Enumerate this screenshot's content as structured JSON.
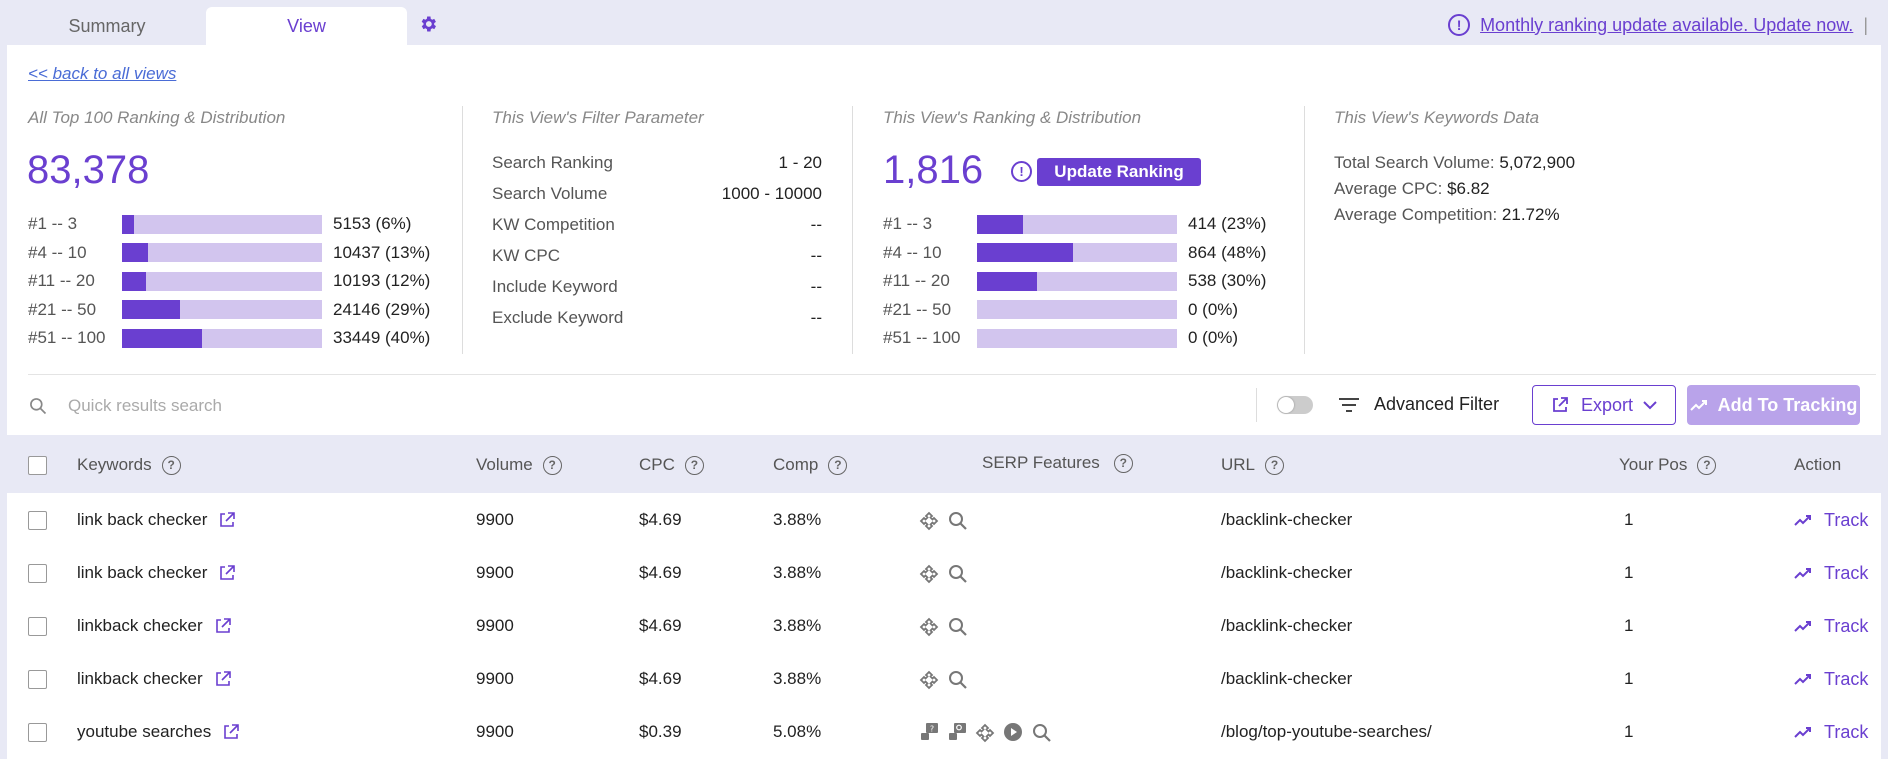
{
  "tabs": [
    {
      "label": "Summary"
    },
    {
      "label": "View"
    }
  ],
  "notice": {
    "text": "Monthly ranking update available. Update now.",
    "separator": "|"
  },
  "back_link": "<< back to all views",
  "all_top": {
    "title": "All Top 100 Ranking & Distribution",
    "total": "83,378",
    "rows": [
      {
        "label": "#1 -- 3",
        "value": "5153 (6%)",
        "fraction": 0.06
      },
      {
        "label": "#4 -- 10",
        "value": "10437 (13%)",
        "fraction": 0.13
      },
      {
        "label": "#11 -- 20",
        "value": "10193 (12%)",
        "fraction": 0.12
      },
      {
        "label": "#21 -- 50",
        "value": "24146 (29%)",
        "fraction": 0.29
      },
      {
        "label": "#51 -- 100",
        "value": "33449 (40%)",
        "fraction": 0.4
      }
    ]
  },
  "filter": {
    "title": "This View's Filter Parameter",
    "rows": [
      {
        "key": "Search Ranking",
        "value": "1 - 20"
      },
      {
        "key": "Search Volume",
        "value": "1000 - 10000"
      },
      {
        "key": "KW Competition",
        "value": "--"
      },
      {
        "key": "KW CPC",
        "value": "--"
      },
      {
        "key": "Include Keyword",
        "value": "--"
      },
      {
        "key": "Exclude Keyword",
        "value": "--"
      }
    ]
  },
  "view_rank": {
    "title": "This View's Ranking & Distribution",
    "total": "1,816",
    "update_label": "Update Ranking",
    "rows": [
      {
        "label": "#1 -- 3",
        "value": "414 (23%)",
        "fraction": 0.23
      },
      {
        "label": "#4 -- 10",
        "value": "864 (48%)",
        "fraction": 0.48
      },
      {
        "label": "#11 -- 20",
        "value": "538 (30%)",
        "fraction": 0.3
      },
      {
        "label": "#21 -- 50",
        "value": "0 (0%)",
        "fraction": 0
      },
      {
        "label": "#51 -- 100",
        "value": "0 (0%)",
        "fraction": 0
      }
    ]
  },
  "kw_data": {
    "title": "This View's Keywords Data",
    "rows": [
      {
        "key": "Total Search Volume:",
        "value": "5,072,900"
      },
      {
        "key": "Average CPC:",
        "value": "$6.82"
      },
      {
        "key": "Average Competition:",
        "value": "21.72%"
      }
    ]
  },
  "toolbar": {
    "search_placeholder": "Quick results search",
    "advanced_filter": "Advanced Filter",
    "export": "Export",
    "add_tracking": "Add To Tracking"
  },
  "table": {
    "headers": {
      "keywords": "Keywords",
      "volume": "Volume",
      "cpc": "CPC",
      "comp": "Comp",
      "serp": "SERP Features",
      "url": "URL",
      "pos": "Your Pos",
      "action": "Action"
    },
    "rows": [
      {
        "keyword": "link back checker",
        "volume": "9900",
        "cpc": "$4.69",
        "comp": "3.88%",
        "serp": [
          "puzzle-icon",
          "search-icon"
        ],
        "url": "/backlink-checker",
        "pos": "1",
        "action": "Track"
      },
      {
        "keyword": "link back checker",
        "volume": "9900",
        "cpc": "$4.69",
        "comp": "3.88%",
        "serp": [
          "puzzle-icon",
          "search-icon"
        ],
        "url": "/backlink-checker",
        "pos": "1",
        "action": "Track"
      },
      {
        "keyword": "linkback checker",
        "volume": "9900",
        "cpc": "$4.69",
        "comp": "3.88%",
        "serp": [
          "puzzle-icon",
          "search-icon"
        ],
        "url": "/backlink-checker",
        "pos": "1",
        "action": "Track"
      },
      {
        "keyword": "linkback checker",
        "volume": "9900",
        "cpc": "$4.69",
        "comp": "3.88%",
        "serp": [
          "puzzle-icon",
          "search-icon"
        ],
        "url": "/backlink-checker",
        "pos": "1",
        "action": "Track"
      },
      {
        "keyword": "youtube searches",
        "volume": "9900",
        "cpc": "$0.39",
        "comp": "5.08%",
        "serp": [
          "people-ask-icon",
          "related-search-icon",
          "puzzle-icon",
          "video-icon",
          "search-icon"
        ],
        "url": "/blog/top-youtube-searches/",
        "pos": "1",
        "action": "Track"
      }
    ]
  },
  "colors": {
    "accent": "#6a3fd0",
    "bar_bg": "#d2c5ee"
  }
}
